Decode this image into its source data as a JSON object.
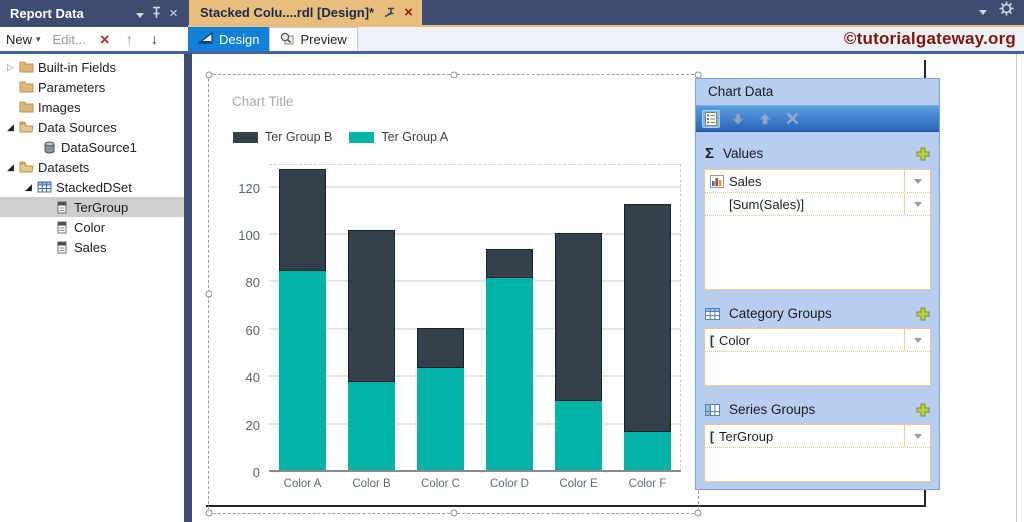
{
  "colors": {
    "teal": "#00b3a6",
    "dark_slate": "#34414a",
    "tab_tan": "#e9bd7b",
    "navy": "#3e4c72",
    "panel_blue": "#b7cef2",
    "brand_red": "#7e170c",
    "design_tab_blue": "#1080d8"
  },
  "sidebar": {
    "title": "Report Data",
    "toolbar": {
      "new_label": "New",
      "edit_label": "Edit..."
    },
    "items": [
      {
        "label": "Built-in Fields"
      },
      {
        "label": "Parameters"
      },
      {
        "label": "Images"
      },
      {
        "label": "Data Sources"
      },
      {
        "label": "DataSource1"
      },
      {
        "label": "Datasets"
      },
      {
        "label": "StackedDSet"
      },
      {
        "label": "TerGroup"
      },
      {
        "label": "Color"
      },
      {
        "label": "Sales"
      }
    ]
  },
  "header": {
    "document_tab": "Stacked Colu....rdl [Design]*",
    "design_tab": "Design",
    "preview_tab": "Preview",
    "brand": "©tutorialgateway.org"
  },
  "chart_data": {
    "type": "bar",
    "stacked": true,
    "title": "Chart Title",
    "categories": [
      "Color A",
      "Color B",
      "Color C",
      "Color D",
      "Color E",
      "Color F"
    ],
    "series": [
      {
        "name": "Ter Group A",
        "color": "#00b3a6",
        "values": [
          85,
          38,
          44,
          82,
          30,
          17
        ]
      },
      {
        "name": "Ter Group B",
        "color": "#34414a",
        "values": [
          43,
          64,
          17,
          12,
          71,
          96
        ]
      }
    ],
    "legend_order": [
      "Ter Group B",
      "Ter Group A"
    ],
    "legend_position": "top",
    "grid": true,
    "yticks": [
      0,
      20,
      40,
      60,
      80,
      100,
      120
    ],
    "ylim": [
      0,
      130
    ],
    "xlabel": "",
    "ylabel": ""
  },
  "chart_data_panel": {
    "title": "Chart Data",
    "values_label": "Values",
    "values_rows": [
      {
        "text": "Sales"
      },
      {
        "text": "[Sum(Sales)]"
      }
    ],
    "category_label": "Category Groups",
    "category_rows": [
      {
        "text": "Color"
      }
    ],
    "series_label": "Series Groups",
    "series_rows": [
      {
        "text": "TerGroup"
      }
    ],
    "group_bracket": "["
  }
}
